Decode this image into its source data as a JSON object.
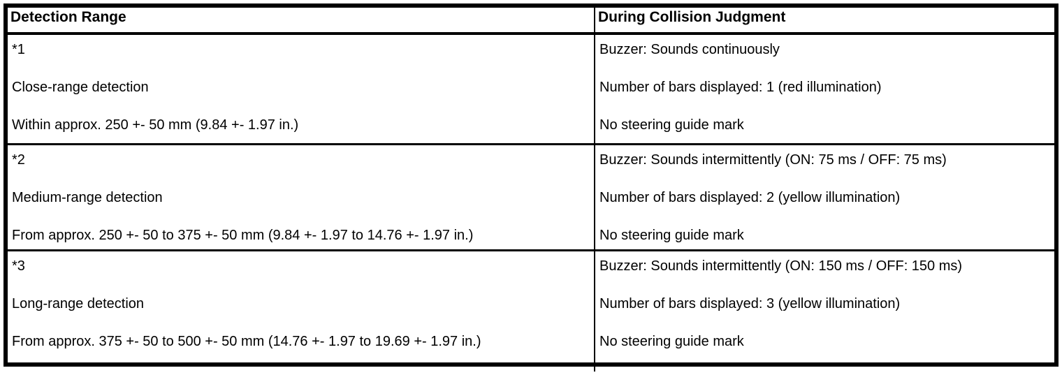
{
  "table": {
    "columns": [
      "Detection Range",
      "During Collision Judgment"
    ],
    "rows": [
      {
        "detection_range": [
          "*1",
          "Close-range detection",
          "Within approx. 250 +- 50 mm (9.84 +- 1.97 in.)"
        ],
        "during_collision_judgment": [
          "Buzzer: Sounds continuously",
          "Number of bars displayed: 1 (red illumination)",
          "No steering guide mark"
        ]
      },
      {
        "detection_range": [
          "*2",
          "Medium-range detection",
          "From approx. 250 +- 50 to 375 +- 50 mm (9.84 +- 1.97 to 14.76 +- 1.97 in.)"
        ],
        "during_collision_judgment": [
          "Buzzer: Sounds intermittently (ON: 75 ms / OFF: 75 ms)",
          "Number of bars displayed: 2 (yellow illumination)",
          "No steering guide mark"
        ]
      },
      {
        "detection_range": [
          "*3",
          "Long-range detection",
          "From approx. 375 +- 50 to 500 +- 50 mm (14.76 +- 1.97 to 19.69 +- 1.97 in.)"
        ],
        "during_collision_judgment": [
          "Buzzer: Sounds intermittently (ON: 150 ms / OFF: 150 ms)",
          "Number of bars displayed: 3 (yellow illumination)",
          "No steering guide mark"
        ]
      }
    ],
    "colors": {
      "border": "#000000",
      "text": "#000000",
      "background": "#ffffff"
    }
  }
}
